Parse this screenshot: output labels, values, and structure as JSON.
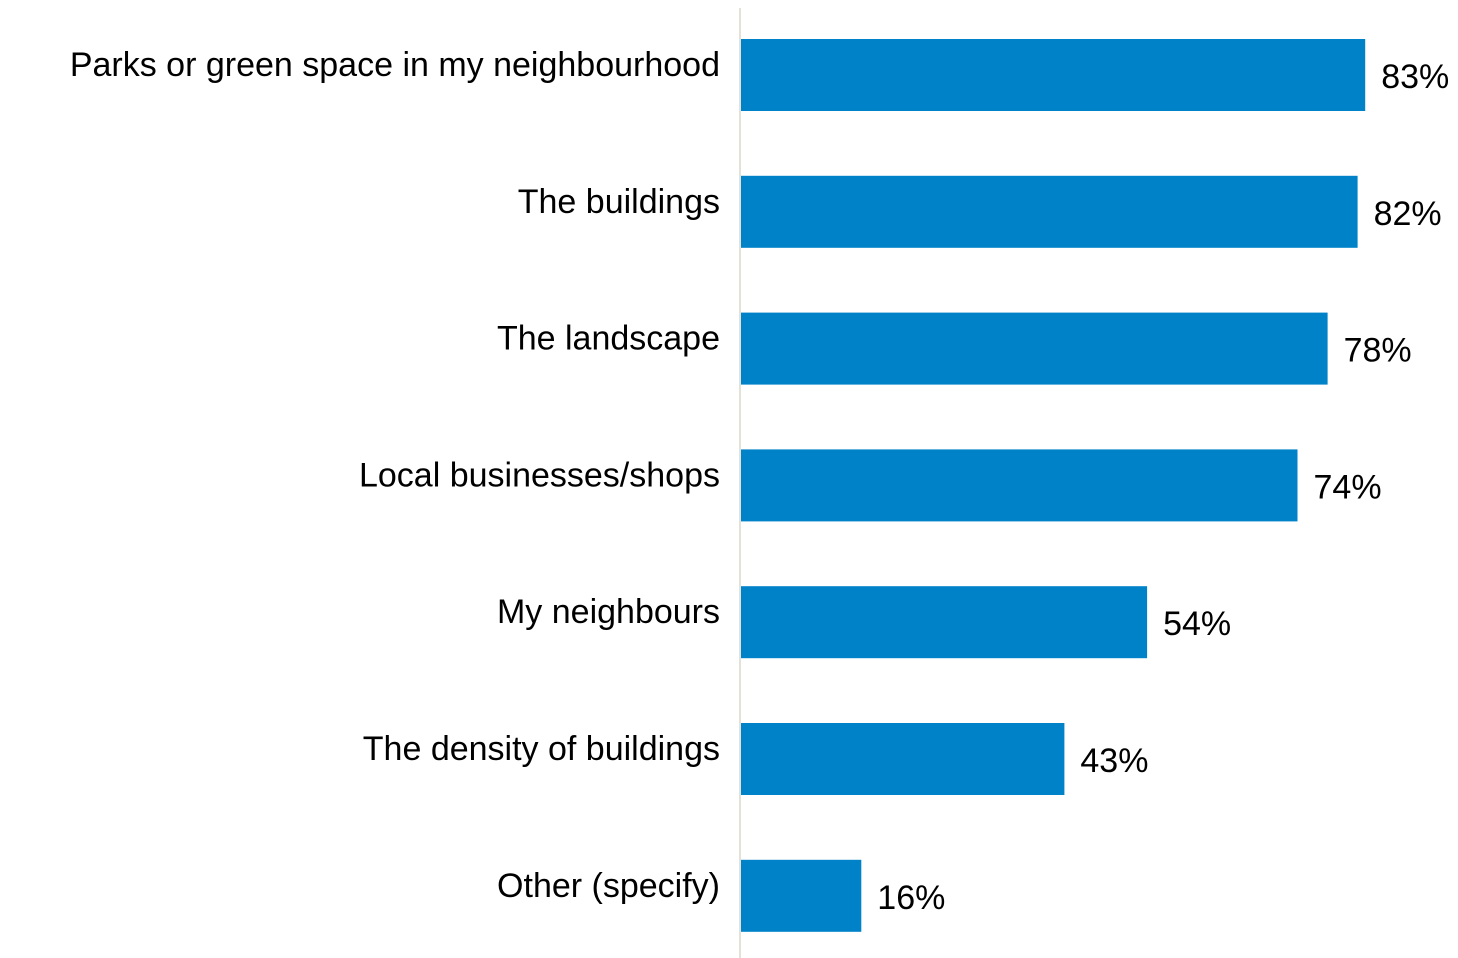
{
  "chart_data": {
    "type": "bar",
    "orientation": "horizontal",
    "categories": [
      "Parks or green space in my neighbourhood",
      "The buildings",
      "The landscape",
      "Local businesses/shops",
      "My neighbours",
      "The density of buildings",
      "Other (specify)"
    ],
    "values": [
      83,
      82,
      78,
      74,
      54,
      43,
      16
    ],
    "value_labels": [
      "83%",
      "82%",
      "78%",
      "74%",
      "54%",
      "43%",
      "16%"
    ],
    "unit": "%",
    "xlim": [
      0,
      100
    ],
    "grid": false,
    "legend": "none",
    "bar_color": "#0082C8",
    "axis_line_color": "#e3e1d8"
  }
}
